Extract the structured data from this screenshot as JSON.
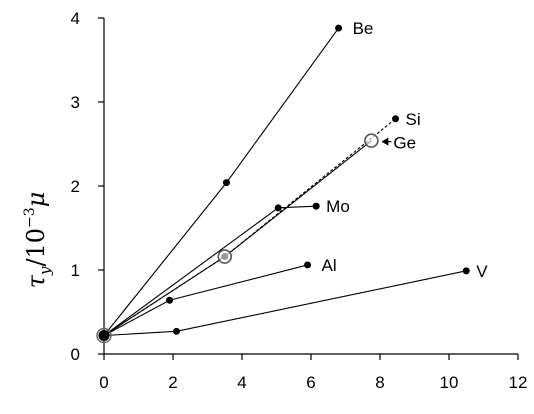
{
  "chart_data": {
    "type": "line",
    "title": "",
    "xlabel": "",
    "ylabel": {
      "symbol": "τ",
      "subscript": "y",
      "divider": "/10",
      "exponent": "−3",
      "unit": "μ"
    },
    "xlim": [
      0,
      12
    ],
    "ylim": [
      0,
      4
    ],
    "xticks": [
      0,
      2,
      4,
      6,
      8,
      10,
      12
    ],
    "yticks": [
      0,
      1,
      2,
      3,
      4
    ],
    "grid": false,
    "legend": "none",
    "origin": {
      "x": 0,
      "y": 0.22
    },
    "series": [
      {
        "name": "Be",
        "label": "Be",
        "style": "solid",
        "points": [
          {
            "x": 0,
            "y": 0.22
          },
          {
            "x": 3.55,
            "y": 2.04
          },
          {
            "x": 6.8,
            "y": 3.88
          }
        ]
      },
      {
        "name": "Si",
        "label": "Si",
        "style": "dashed",
        "points": [
          {
            "x": 0,
            "y": 0.22
          },
          {
            "x": 3.5,
            "y": 1.16
          },
          {
            "x": 8.45,
            "y": 2.8
          }
        ]
      },
      {
        "name": "Ge",
        "label": "Ge",
        "style": "solid",
        "marker": "open",
        "points": [
          {
            "x": 0,
            "y": 0.22
          },
          {
            "x": 3.5,
            "y": 1.16
          },
          {
            "x": 7.75,
            "y": 2.54
          }
        ]
      },
      {
        "name": "Mo",
        "label": "Mo",
        "style": "solid",
        "points": [
          {
            "x": 0,
            "y": 0.22
          },
          {
            "x": 5.05,
            "y": 1.74
          },
          {
            "x": 6.15,
            "y": 1.76
          }
        ]
      },
      {
        "name": "Al",
        "label": "Al",
        "style": "solid",
        "points": [
          {
            "x": 0,
            "y": 0.22
          },
          {
            "x": 1.9,
            "y": 0.64
          },
          {
            "x": 5.9,
            "y": 1.06
          }
        ]
      },
      {
        "name": "V",
        "label": "V",
        "style": "solid",
        "points": [
          {
            "x": 0,
            "y": 0.22
          },
          {
            "x": 2.1,
            "y": 0.27
          },
          {
            "x": 10.5,
            "y": 0.99
          }
        ]
      }
    ]
  }
}
